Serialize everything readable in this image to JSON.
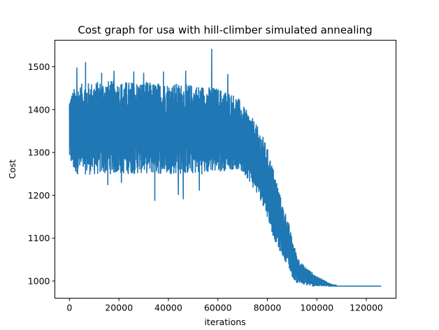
{
  "chart_data": {
    "type": "line",
    "title": "Cost graph for usa with hill-climber simulated annealing",
    "xlabel": "iterations",
    "ylabel": "Cost",
    "xlim": [
      -5900,
      132000
    ],
    "ylim": [
      960,
      1562
    ],
    "xticks": [
      0,
      20000,
      40000,
      60000,
      80000,
      100000,
      120000
    ],
    "xtick_labels": [
      "0",
      "20000",
      "40000",
      "60000",
      "80000",
      "100000",
      "120000"
    ],
    "yticks": [
      1000,
      1100,
      1200,
      1300,
      1400,
      1500
    ],
    "ytick_labels": [
      "1000",
      "1100",
      "1200",
      "1300",
      "1400",
      "1500"
    ],
    "grid": false,
    "legend": "none",
    "series": [
      {
        "color": "#1f77b4",
        "x": [
          0,
          2000,
          5000,
          10000,
          15000,
          20000,
          25000,
          30000,
          35000,
          40000,
          45000,
          50000,
          55000,
          60000,
          65000,
          68000,
          70000,
          72000,
          74000,
          76000,
          78000,
          80000,
          82000,
          84000,
          86000,
          88000,
          90000,
          92000,
          94000,
          96000,
          98000,
          100000,
          102000,
          104000,
          106000,
          108000,
          110000,
          115000,
          120000,
          126000
        ],
        "upper": [
          1430,
          1450,
          1460,
          1465,
          1468,
          1465,
          1465,
          1465,
          1462,
          1462,
          1460,
          1458,
          1455,
          1450,
          1440,
          1430,
          1410,
          1395,
          1380,
          1360,
          1340,
          1310,
          1270,
          1230,
          1180,
          1150,
          1100,
          1060,
          1040,
          1030,
          1020,
          1010,
          1005,
          998,
          992,
          990,
          988,
          988,
          988,
          988
        ],
        "lower": [
          1280,
          1250,
          1250,
          1248,
          1250,
          1250,
          1250,
          1252,
          1250,
          1250,
          1250,
          1250,
          1250,
          1255,
          1260,
          1260,
          1250,
          1240,
          1220,
          1200,
          1180,
          1150,
          1110,
          1080,
          1060,
          1040,
          1010,
          995,
          992,
          990,
          988,
          988,
          988,
          988,
          988,
          988,
          988,
          988,
          988,
          988
        ],
        "noted_peaks": [
          {
            "x": 3000,
            "y": 1497
          },
          {
            "x": 6500,
            "y": 1510
          },
          {
            "x": 13000,
            "y": 1485
          },
          {
            "x": 18000,
            "y": 1490
          },
          {
            "x": 26000,
            "y": 1488
          },
          {
            "x": 30000,
            "y": 1485
          },
          {
            "x": 38000,
            "y": 1488
          },
          {
            "x": 47000,
            "y": 1490
          },
          {
            "x": 57500,
            "y": 1541
          },
          {
            "x": 64000,
            "y": 1482
          }
        ],
        "noted_troughs": [
          {
            "x": 15500,
            "y": 1225
          },
          {
            "x": 21000,
            "y": 1230
          },
          {
            "x": 34500,
            "y": 1188
          },
          {
            "x": 44000,
            "y": 1202
          },
          {
            "x": 46000,
            "y": 1192
          },
          {
            "x": 52500,
            "y": 1212
          }
        ]
      }
    ]
  }
}
